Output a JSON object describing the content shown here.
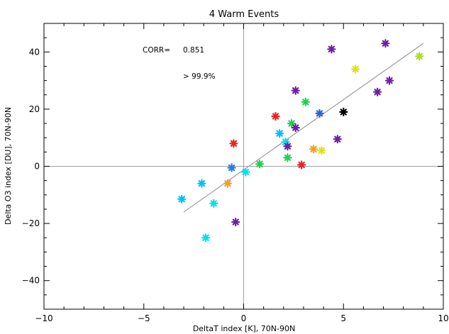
{
  "chart_data": {
    "type": "scatter",
    "title": "4 Warm Events",
    "xlabel": "DeltaT index [K], 70N-90N",
    "ylabel": "Delta O3 index [DU], 70N-90N",
    "xlim": [
      -10,
      10
    ],
    "ylim": [
      -50,
      50
    ],
    "x_ticks": [
      -10,
      -5,
      0,
      5,
      10
    ],
    "y_ticks": [
      -40,
      -20,
      0,
      20,
      40
    ],
    "x_tick_labels": [
      "−10",
      "−5",
      "0",
      "5",
      "10"
    ],
    "y_tick_labels": [
      "−40",
      "−20",
      "0",
      "20",
      "40"
    ],
    "annotations": {
      "corr_label": "CORR=",
      "corr_value": "0.851",
      "significance": "> 99.9%"
    },
    "fit_line": {
      "x": [
        -3.0,
        9.0
      ],
      "y": [
        -16.0,
        43.0
      ]
    },
    "marker": "asterisk",
    "points": [
      {
        "x": -3.1,
        "y": -11.5,
        "color": "#00bfff"
      },
      {
        "x": -2.1,
        "y": -6.0,
        "color": "#00bfff"
      },
      {
        "x": -1.9,
        "y": -25.0,
        "color": "#00e0ee"
      },
      {
        "x": -1.5,
        "y": -13.0,
        "color": "#00e0ee"
      },
      {
        "x": -0.8,
        "y": -6.0,
        "color": "#f0a020"
      },
      {
        "x": -0.6,
        "y": -0.5,
        "color": "#1e7fe0"
      },
      {
        "x": -0.5,
        "y": 8.0,
        "color": "#ee2020"
      },
      {
        "x": -0.4,
        "y": -19.5,
        "color": "#6a20a8"
      },
      {
        "x": 0.1,
        "y": -2.0,
        "color": "#00e0ee"
      },
      {
        "x": 0.8,
        "y": 0.8,
        "color": "#20d050"
      },
      {
        "x": 1.6,
        "y": 17.5,
        "color": "#ee2020"
      },
      {
        "x": 1.8,
        "y": 11.5,
        "color": "#00bfff"
      },
      {
        "x": 2.1,
        "y": 8.5,
        "color": "#00e0ee"
      },
      {
        "x": 2.2,
        "y": 7.0,
        "color": "#6a20a8"
      },
      {
        "x": 2.2,
        "y": 3.0,
        "color": "#20d050"
      },
      {
        "x": 2.4,
        "y": 15.0,
        "color": "#20d050"
      },
      {
        "x": 2.6,
        "y": 26.5,
        "color": "#6a20a8"
      },
      {
        "x": 2.6,
        "y": 13.5,
        "color": "#6a20a8"
      },
      {
        "x": 2.9,
        "y": 0.5,
        "color": "#ee2020"
      },
      {
        "x": 3.1,
        "y": 22.5,
        "color": "#20d050"
      },
      {
        "x": 3.5,
        "y": 6.0,
        "color": "#f0a020"
      },
      {
        "x": 3.8,
        "y": 18.5,
        "color": "#3060d8"
      },
      {
        "x": 3.9,
        "y": 5.5,
        "color": "#e0e020"
      },
      {
        "x": 4.4,
        "y": 41.0,
        "color": "#6a20a8"
      },
      {
        "x": 4.7,
        "y": 9.5,
        "color": "#6a20a8"
      },
      {
        "x": 5.0,
        "y": 19.0,
        "color": "#000000"
      },
      {
        "x": 5.6,
        "y": 34.0,
        "color": "#e0e020"
      },
      {
        "x": 6.7,
        "y": 26.0,
        "color": "#6a20a8"
      },
      {
        "x": 7.1,
        "y": 43.0,
        "color": "#6a20a8"
      },
      {
        "x": 7.3,
        "y": 30.0,
        "color": "#6a20a8"
      },
      {
        "x": 8.8,
        "y": 38.5,
        "color": "#a8e020"
      }
    ]
  }
}
